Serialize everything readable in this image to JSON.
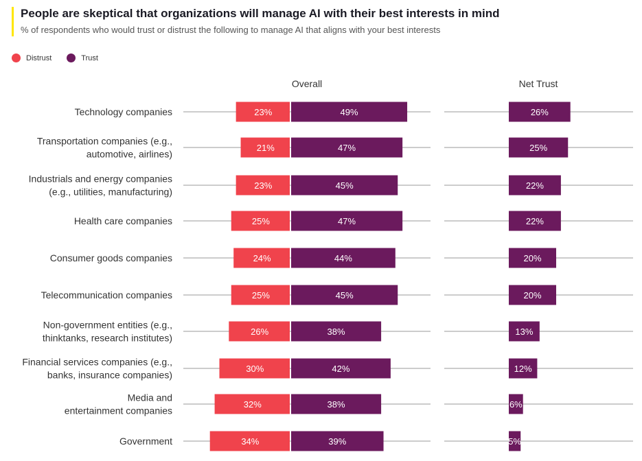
{
  "title": "People are skeptical that organizations will manage AI with their best interests in mind",
  "subtitle": "% of respondents who would trust or distrust the following to manage AI that aligns with your best interests",
  "legend": {
    "distrust_label": "Distrust",
    "trust_label": "Trust"
  },
  "colors": {
    "distrust": "#f0434c",
    "trust": "#6b1a5d",
    "accent": "#ffe600",
    "gridline": "#999999"
  },
  "columns": {
    "overall": "Overall",
    "net_trust": "Net Trust"
  },
  "chart_data": {
    "type": "bar",
    "categories": [
      [
        "Technology companies"
      ],
      [
        "Transportation companies (e.g.,",
        "automotive, airlines)"
      ],
      [
        "Industrials and energy companies",
        "(e.g., utilities, manufacturing)"
      ],
      [
        "Health care companies"
      ],
      [
        "Consumer goods companies"
      ],
      [
        "Telecommunication companies"
      ],
      [
        "Non-government entities (e.g.,",
        "thinktanks, research institutes)"
      ],
      [
        "Financial services companies (e.g.,",
        "banks, insurance companies)"
      ],
      [
        "Media and",
        "entertainment companies"
      ],
      [
        "Government"
      ]
    ],
    "series": [
      {
        "name": "Distrust",
        "values": [
          23,
          21,
          23,
          25,
          24,
          25,
          26,
          30,
          32,
          34
        ]
      },
      {
        "name": "Trust",
        "values": [
          49,
          47,
          45,
          47,
          44,
          45,
          38,
          42,
          38,
          39
        ]
      },
      {
        "name": "Net Trust",
        "values": [
          26,
          25,
          22,
          22,
          20,
          20,
          13,
          12,
          6,
          5
        ]
      }
    ],
    "value_suffix": "%",
    "legend_position": "top-left",
    "grid": false
  }
}
